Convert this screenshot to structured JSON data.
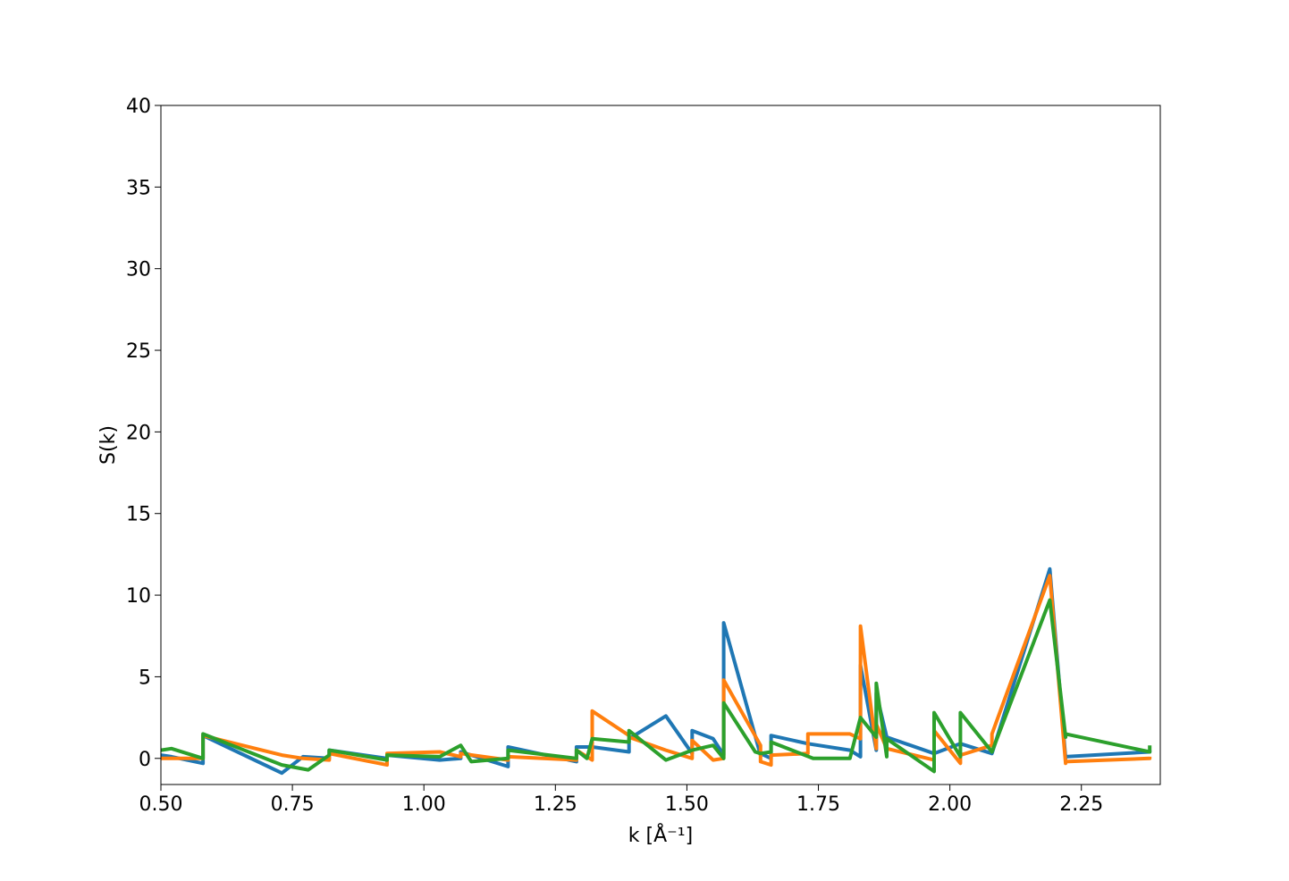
{
  "chart_data": {
    "type": "line",
    "title": "",
    "xlabel": "k [Å⁻¹]",
    "ylabel": "S(k)",
    "xlim": [
      0.5,
      2.4
    ],
    "ylim": [
      -1.6,
      40
    ],
    "xticks": [
      0.5,
      0.75,
      1.0,
      1.25,
      1.5,
      1.75,
      2.0,
      2.25
    ],
    "xtick_labels": [
      "0.50",
      "0.75",
      "1.00",
      "1.25",
      "1.50",
      "1.75",
      "2.00",
      "2.25"
    ],
    "yticks": [
      0,
      5,
      10,
      15,
      20,
      25,
      30,
      35,
      40
    ],
    "ytick_labels": [
      "0",
      "5",
      "10",
      "15",
      "20",
      "25",
      "30",
      "35",
      "40"
    ],
    "grid": false,
    "legend": false,
    "series": [
      {
        "color": "#1f77b4",
        "x": [
          0.5,
          0.52,
          0.58,
          0.58,
          0.73,
          0.77,
          0.82,
          0.82,
          0.93,
          0.93,
          1.03,
          1.07,
          1.07,
          1.16,
          1.16,
          1.29,
          1.29,
          1.32,
          1.39,
          1.39,
          1.46,
          1.51,
          1.51,
          1.55,
          1.57,
          1.57,
          1.64,
          1.64,
          1.66,
          1.66,
          1.73,
          1.81,
          1.83,
          1.83,
          1.86,
          1.86,
          1.88,
          1.97,
          1.97,
          2.02,
          2.08,
          2.19,
          2.22,
          2.22,
          2.38,
          2.38
        ],
        "y": [
          0.2,
          0.1,
          -0.3,
          1.4,
          -0.9,
          0.1,
          0.0,
          0.5,
          0.0,
          0.2,
          -0.1,
          0.0,
          0.4,
          -0.5,
          0.7,
          -0.2,
          0.7,
          0.7,
          0.4,
          1.2,
          2.6,
          0.3,
          1.7,
          1.2,
          0.2,
          8.3,
          0.2,
          0.3,
          0.0,
          1.4,
          0.9,
          0.5,
          0.1,
          5.7,
          0.5,
          4.0,
          1.3,
          0.3,
          0.3,
          0.9,
          0.3,
          11.6,
          0.0,
          0.1,
          0.4,
          0.5
        ]
      },
      {
        "color": "#ff7f0e",
        "x": [
          0.5,
          0.52,
          0.58,
          0.58,
          0.73,
          0.77,
          0.82,
          0.82,
          0.93,
          0.93,
          1.03,
          1.07,
          1.07,
          1.16,
          1.16,
          1.29,
          1.29,
          1.32,
          1.32,
          1.39,
          1.39,
          1.46,
          1.51,
          1.51,
          1.55,
          1.57,
          1.57,
          1.64,
          1.64,
          1.66,
          1.66,
          1.73,
          1.73,
          1.81,
          1.83,
          1.83,
          1.86,
          1.86,
          1.88,
          1.97,
          1.97,
          2.02,
          2.02,
          2.08,
          2.08,
          2.19,
          2.22,
          2.22,
          2.38,
          2.38
        ],
        "y": [
          0.0,
          0.0,
          0.0,
          1.4,
          0.2,
          0.0,
          -0.1,
          0.3,
          -0.4,
          0.3,
          0.4,
          0.1,
          0.3,
          -0.1,
          0.1,
          -0.1,
          0.5,
          -0.1,
          2.9,
          1.4,
          1.3,
          0.5,
          0.0,
          1.1,
          -0.1,
          0.0,
          4.8,
          0.8,
          -0.2,
          -0.4,
          0.2,
          0.3,
          1.5,
          1.5,
          1.2,
          8.1,
          0.6,
          2.1,
          0.6,
          -0.1,
          1.7,
          -0.3,
          0.2,
          0.8,
          1.5,
          11.2,
          -0.3,
          -0.2,
          0.0,
          0.1
        ]
      },
      {
        "color": "#2ca02c",
        "x": [
          0.5,
          0.52,
          0.58,
          0.58,
          0.73,
          0.78,
          0.82,
          0.82,
          0.93,
          0.93,
          1.03,
          1.07,
          1.09,
          1.16,
          1.16,
          1.29,
          1.29,
          1.31,
          1.32,
          1.39,
          1.39,
          1.46,
          1.51,
          1.55,
          1.57,
          1.57,
          1.63,
          1.64,
          1.66,
          1.66,
          1.74,
          1.81,
          1.83,
          1.86,
          1.86,
          1.88,
          1.88,
          1.97,
          1.97,
          2.02,
          2.02,
          2.08,
          2.19,
          2.22,
          2.22,
          2.38,
          2.38
        ],
        "y": [
          0.5,
          0.6,
          0.0,
          1.5,
          -0.4,
          -0.7,
          0.2,
          0.5,
          -0.1,
          0.2,
          0.1,
          0.8,
          -0.2,
          0.0,
          0.5,
          0.0,
          0.5,
          0.0,
          1.2,
          1.0,
          1.7,
          -0.1,
          0.5,
          0.8,
          0.0,
          3.4,
          0.4,
          0.3,
          0.4,
          1.0,
          0.0,
          0.0,
          2.5,
          1.3,
          4.6,
          0.1,
          1.2,
          -0.8,
          2.8,
          0.1,
          2.8,
          0.4,
          9.7,
          1.3,
          1.5,
          0.4,
          0.8
        ]
      }
    ]
  }
}
